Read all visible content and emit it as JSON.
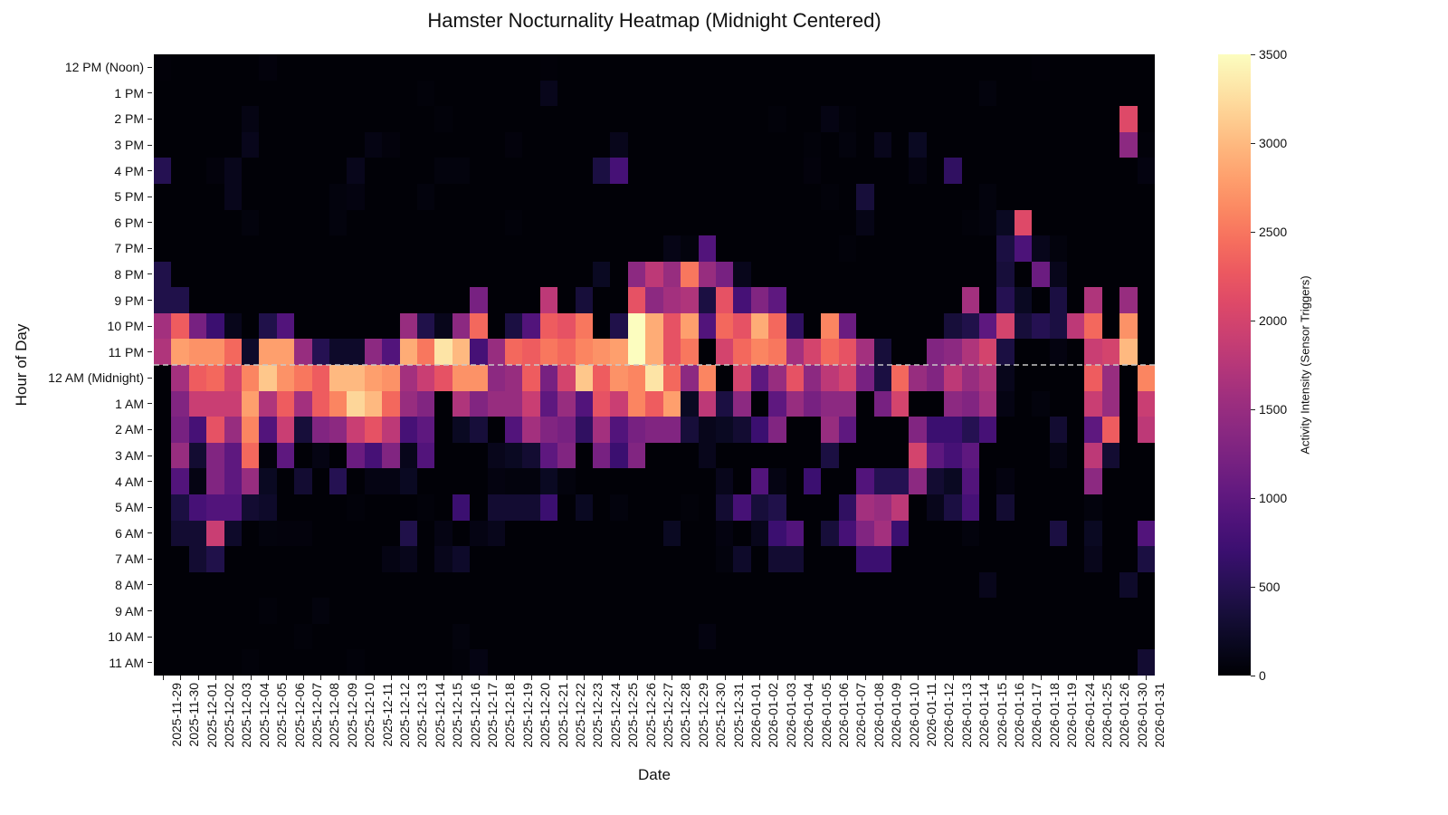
{
  "chart_data": {
    "type": "heatmap",
    "title": "Hamster Nocturnality Heatmap (Midnight Centered)",
    "xlabel": "Date",
    "ylabel": "Hour of Day",
    "colorbar_label": "Activity Intensity (Sensor Triggers)",
    "colormap": "magma",
    "vmin": 0,
    "vmax": 3500,
    "colorbar_ticks": [
      0,
      500,
      1000,
      1500,
      2000,
      2500,
      3000,
      3500
    ],
    "midnight_line": {
      "between_rows": [
        "11 PM",
        "12 AM (Midnight)"
      ],
      "style": "dashed",
      "color": "#c8c8c8"
    },
    "y_labels": [
      "12 PM (Noon)",
      "1 PM",
      "2 PM",
      "3 PM",
      "4 PM",
      "5 PM",
      "6 PM",
      "7 PM",
      "8 PM",
      "9 PM",
      "10 PM",
      "11 PM",
      "12 AM (Midnight)",
      "1 AM",
      "2 AM",
      "3 AM",
      "4 AM",
      "5 AM",
      "6 AM",
      "7 AM",
      "8 AM",
      "9 AM",
      "10 AM",
      "11 AM"
    ],
    "x_labels": [
      "2025-11-29",
      "2025-11-30",
      "2025-12-01",
      "2025-12-02",
      "2025-12-03",
      "2025-12-04",
      "2025-12-05",
      "2025-12-06",
      "2025-12-07",
      "2025-12-08",
      "2025-12-09",
      "2025-12-10",
      "2025-12-11",
      "2025-12-12",
      "2025-12-13",
      "2025-12-14",
      "2025-12-15",
      "2025-12-16",
      "2025-12-17",
      "2025-12-18",
      "2025-12-19",
      "2025-12-20",
      "2025-12-21",
      "2025-12-22",
      "2025-12-23",
      "2025-12-24",
      "2025-12-25",
      "2025-12-26",
      "2025-12-27",
      "2025-12-28",
      "2025-12-29",
      "2025-12-30",
      "2025-12-31",
      "2026-01-01",
      "2026-01-02",
      "2026-01-03",
      "2026-01-04",
      "2026-01-05",
      "2026-01-06",
      "2026-01-07",
      "2026-01-08",
      "2026-01-09",
      "2026-01-10",
      "2026-01-11",
      "2026-01-12",
      "2026-01-13",
      "2026-01-14",
      "2026-01-15",
      "2026-01-16",
      "2026-01-17",
      "2026-01-18",
      "2026-01-19",
      "2026-01-24",
      "2026-01-25",
      "2026-01-26",
      "2026-01-30",
      "2026-01-31"
    ],
    "values": [
      [
        30,
        20,
        20,
        20,
        20,
        20,
        50,
        20,
        20,
        20,
        20,
        20,
        20,
        20,
        20,
        20,
        20,
        20,
        20,
        20,
        20,
        20,
        30,
        20,
        20,
        20,
        20,
        20,
        20,
        20,
        20,
        20,
        20,
        20,
        20,
        20,
        20,
        20,
        20,
        20,
        20,
        20,
        20,
        20,
        20,
        20,
        20,
        20,
        20,
        20,
        30,
        20,
        20,
        20,
        20,
        20,
        20
      ],
      [
        20,
        20,
        20,
        20,
        20,
        20,
        20,
        20,
        20,
        20,
        20,
        20,
        20,
        20,
        20,
        40,
        20,
        20,
        20,
        20,
        20,
        20,
        150,
        20,
        20,
        20,
        20,
        20,
        20,
        20,
        20,
        20,
        20,
        20,
        20,
        20,
        20,
        20,
        20,
        20,
        20,
        20,
        20,
        20,
        20,
        20,
        20,
        60,
        20,
        20,
        20,
        20,
        20,
        20,
        20,
        20,
        20
      ],
      [
        20,
        20,
        20,
        20,
        20,
        100,
        20,
        20,
        20,
        20,
        20,
        20,
        20,
        20,
        20,
        20,
        40,
        20,
        20,
        20,
        20,
        20,
        20,
        20,
        20,
        20,
        20,
        20,
        20,
        20,
        20,
        20,
        20,
        20,
        20,
        40,
        20,
        20,
        100,
        40,
        20,
        20,
        20,
        20,
        20,
        20,
        20,
        20,
        20,
        20,
        20,
        20,
        20,
        20,
        20,
        2100,
        20
      ],
      [
        20,
        20,
        20,
        20,
        20,
        150,
        20,
        20,
        20,
        20,
        20,
        20,
        100,
        50,
        20,
        20,
        20,
        20,
        20,
        20,
        50,
        20,
        20,
        20,
        20,
        20,
        150,
        20,
        20,
        20,
        20,
        20,
        20,
        20,
        20,
        20,
        20,
        40,
        20,
        60,
        20,
        150,
        20,
        200,
        20,
        20,
        20,
        20,
        20,
        20,
        20,
        20,
        20,
        20,
        20,
        1400,
        40
      ],
      [
        500,
        20,
        20,
        50,
        150,
        20,
        20,
        20,
        20,
        20,
        20,
        150,
        20,
        20,
        20,
        20,
        60,
        60,
        20,
        20,
        20,
        20,
        20,
        20,
        20,
        400,
        800,
        20,
        20,
        20,
        20,
        20,
        20,
        20,
        20,
        20,
        20,
        50,
        20,
        20,
        20,
        20,
        20,
        80,
        20,
        600,
        20,
        20,
        20,
        20,
        20,
        20,
        20,
        20,
        20,
        20,
        80
      ],
      [
        20,
        20,
        20,
        20,
        150,
        20,
        20,
        20,
        20,
        20,
        60,
        80,
        20,
        20,
        20,
        60,
        20,
        20,
        20,
        20,
        20,
        20,
        20,
        20,
        20,
        20,
        20,
        20,
        20,
        20,
        20,
        20,
        20,
        20,
        20,
        20,
        20,
        20,
        40,
        20,
        350,
        20,
        20,
        20,
        20,
        20,
        20,
        60,
        20,
        20,
        20,
        20,
        20,
        20,
        20,
        20,
        20
      ],
      [
        20,
        20,
        20,
        20,
        20,
        60,
        20,
        20,
        20,
        20,
        60,
        20,
        20,
        20,
        20,
        20,
        20,
        20,
        20,
        20,
        40,
        20,
        20,
        20,
        20,
        20,
        20,
        20,
        20,
        20,
        20,
        20,
        20,
        20,
        20,
        20,
        20,
        20,
        20,
        20,
        120,
        20,
        20,
        20,
        20,
        20,
        40,
        60,
        200,
        2100,
        20,
        20,
        20,
        20,
        20,
        20,
        20
      ],
      [
        20,
        20,
        20,
        20,
        20,
        20,
        20,
        20,
        20,
        20,
        20,
        20,
        20,
        20,
        20,
        20,
        20,
        20,
        20,
        20,
        20,
        20,
        20,
        20,
        20,
        20,
        20,
        20,
        20,
        120,
        60,
        900,
        20,
        20,
        20,
        20,
        20,
        20,
        20,
        40,
        20,
        20,
        20,
        20,
        20,
        20,
        20,
        20,
        400,
        850,
        150,
        60,
        20,
        20,
        20,
        20,
        20
      ],
      [
        450,
        20,
        20,
        20,
        20,
        20,
        20,
        20,
        20,
        20,
        20,
        20,
        20,
        20,
        20,
        20,
        20,
        20,
        20,
        20,
        20,
        20,
        20,
        20,
        20,
        200,
        20,
        1400,
        1800,
        1500,
        2500,
        1500,
        1200,
        150,
        20,
        20,
        20,
        20,
        20,
        20,
        20,
        20,
        20,
        20,
        20,
        20,
        20,
        20,
        350,
        20,
        1100,
        150,
        20,
        20,
        20,
        20,
        20
      ],
      [
        450,
        450,
        20,
        20,
        20,
        20,
        20,
        20,
        20,
        20,
        20,
        20,
        20,
        20,
        20,
        20,
        20,
        20,
        1200,
        20,
        20,
        20,
        1800,
        20,
        350,
        20,
        20,
        2200,
        1400,
        1600,
        1700,
        400,
        2200,
        800,
        1300,
        1000,
        20,
        20,
        20,
        20,
        20,
        20,
        20,
        20,
        20,
        20,
        1600,
        20,
        500,
        200,
        20,
        400,
        20,
        1700,
        20,
        1500,
        20
      ],
      [
        1600,
        2300,
        1200,
        700,
        150,
        20,
        450,
        900,
        20,
        20,
        20,
        20,
        20,
        20,
        1500,
        450,
        150,
        1400,
        2400,
        20,
        400,
        900,
        2300,
        2200,
        2500,
        20,
        450,
        3500,
        2900,
        2200,
        2800,
        900,
        2400,
        2200,
        2900,
        2400,
        600,
        20,
        2600,
        1100,
        20,
        20,
        20,
        20,
        20,
        350,
        450,
        1000,
        2000,
        350,
        500,
        400,
        1800,
        2400,
        20,
        2700,
        20
      ],
      [
        1700,
        2800,
        2700,
        2700,
        2400,
        250,
        2800,
        2800,
        1500,
        500,
        250,
        250,
        1400,
        900,
        2900,
        2500,
        3300,
        3000,
        800,
        1500,
        2400,
        2300,
        2500,
        2400,
        2600,
        2700,
        2800,
        3500,
        2900,
        2200,
        2500,
        20,
        2000,
        2400,
        2600,
        2500,
        1600,
        2000,
        2400,
        2200,
        1600,
        350,
        20,
        20,
        1300,
        1400,
        1700,
        2000,
        400,
        20,
        20,
        80,
        20,
        1900,
        2000,
        3000,
        20
      ],
      [
        20,
        1600,
        2300,
        2400,
        2000,
        2600,
        3100,
        2700,
        2500,
        2300,
        3000,
        3000,
        2800,
        2700,
        1600,
        1900,
        2200,
        2700,
        2700,
        1400,
        1500,
        2300,
        1200,
        2000,
        3100,
        2300,
        2700,
        2600,
        3300,
        2400,
        1400,
        2600,
        20,
        2000,
        1000,
        1500,
        2200,
        1400,
        1800,
        2000,
        1200,
        400,
        2400,
        1500,
        1300,
        1800,
        1500,
        1700,
        150,
        20,
        20,
        20,
        20,
        2300,
        1500,
        20,
        2600
      ],
      [
        20,
        1300,
        1900,
        1900,
        1900,
        2800,
        1700,
        2300,
        1600,
        2300,
        2600,
        3200,
        3000,
        2400,
        1500,
        1300,
        20,
        1700,
        1300,
        1500,
        1500,
        1900,
        1000,
        1500,
        900,
        2200,
        1900,
        2600,
        2300,
        2800,
        200,
        1800,
        400,
        1400,
        20,
        1000,
        1500,
        1200,
        1400,
        1400,
        20,
        1200,
        2000,
        20,
        20,
        1400,
        1300,
        1600,
        100,
        20,
        60,
        20,
        20,
        1900,
        1500,
        20,
        1900
      ],
      [
        20,
        1200,
        800,
        2200,
        1500,
        2600,
        900,
        1900,
        350,
        1300,
        1400,
        1900,
        2200,
        1800,
        800,
        1000,
        20,
        200,
        350,
        20,
        900,
        1600,
        1300,
        1200,
        600,
        1600,
        900,
        1200,
        1300,
        1300,
        350,
        150,
        200,
        300,
        700,
        1300,
        20,
        20,
        1500,
        1000,
        20,
        20,
        20,
        1300,
        700,
        700,
        500,
        800,
        20,
        20,
        20,
        300,
        20,
        1000,
        2300,
        20,
        1800
      ],
      [
        20,
        1500,
        300,
        1300,
        1000,
        2400,
        50,
        1000,
        20,
        100,
        20,
        1100,
        800,
        1300,
        150,
        900,
        20,
        20,
        20,
        150,
        200,
        300,
        1000,
        1300,
        20,
        1200,
        700,
        1300,
        20,
        20,
        20,
        150,
        20,
        20,
        20,
        20,
        20,
        20,
        400,
        20,
        20,
        20,
        20,
        2000,
        1000,
        800,
        1000,
        20,
        20,
        20,
        20,
        100,
        20,
        1800,
        300,
        20,
        20
      ],
      [
        20,
        900,
        100,
        1300,
        1000,
        1500,
        200,
        20,
        300,
        20,
        500,
        20,
        100,
        100,
        200,
        20,
        20,
        20,
        20,
        80,
        60,
        60,
        200,
        60,
        20,
        20,
        20,
        20,
        20,
        20,
        20,
        20,
        150,
        20,
        900,
        100,
        20,
        700,
        20,
        20,
        900,
        500,
        500,
        1400,
        300,
        200,
        900,
        20,
        80,
        20,
        20,
        20,
        20,
        1400,
        20,
        20,
        20
      ],
      [
        20,
        400,
        800,
        900,
        900,
        300,
        250,
        20,
        20,
        20,
        20,
        40,
        20,
        20,
        20,
        40,
        20,
        700,
        20,
        300,
        300,
        300,
        700,
        20,
        200,
        20,
        60,
        20,
        20,
        20,
        40,
        20,
        300,
        800,
        350,
        450,
        20,
        20,
        20,
        600,
        1600,
        1500,
        1800,
        20,
        150,
        400,
        800,
        20,
        300,
        20,
        20,
        20,
        20,
        60,
        20,
        20,
        20
      ],
      [
        20,
        300,
        300,
        1900,
        250,
        20,
        60,
        50,
        50,
        20,
        20,
        20,
        20,
        20,
        450,
        20,
        100,
        20,
        100,
        150,
        20,
        20,
        20,
        20,
        20,
        20,
        20,
        20,
        20,
        200,
        20,
        20,
        80,
        20,
        150,
        700,
        900,
        20,
        350,
        800,
        1300,
        1600,
        700,
        20,
        20,
        20,
        60,
        20,
        20,
        20,
        20,
        400,
        20,
        200,
        20,
        20,
        900
      ],
      [
        20,
        20,
        300,
        450,
        20,
        20,
        20,
        20,
        20,
        20,
        20,
        20,
        20,
        100,
        150,
        20,
        150,
        250,
        20,
        20,
        20,
        20,
        20,
        20,
        20,
        20,
        20,
        20,
        20,
        20,
        20,
        20,
        60,
        250,
        20,
        300,
        300,
        20,
        20,
        20,
        700,
        700,
        20,
        20,
        20,
        20,
        20,
        20,
        20,
        20,
        20,
        20,
        20,
        150,
        20,
        20,
        400
      ],
      [
        20,
        20,
        20,
        20,
        20,
        20,
        20,
        20,
        20,
        20,
        20,
        20,
        20,
        20,
        20,
        20,
        20,
        20,
        20,
        20,
        20,
        20,
        20,
        20,
        20,
        20,
        20,
        20,
        20,
        20,
        20,
        20,
        20,
        20,
        20,
        20,
        20,
        20,
        20,
        20,
        20,
        20,
        20,
        20,
        20,
        20,
        20,
        150,
        20,
        20,
        20,
        20,
        20,
        20,
        20,
        250,
        20
      ],
      [
        20,
        20,
        20,
        20,
        20,
        20,
        40,
        20,
        20,
        60,
        20,
        20,
        20,
        20,
        20,
        20,
        20,
        20,
        20,
        20,
        20,
        20,
        20,
        20,
        20,
        20,
        20,
        20,
        20,
        20,
        20,
        20,
        20,
        20,
        20,
        20,
        20,
        20,
        20,
        20,
        20,
        20,
        20,
        20,
        20,
        20,
        20,
        20,
        20,
        20,
        20,
        20,
        20,
        20,
        20,
        20,
        20
      ],
      [
        20,
        20,
        20,
        20,
        20,
        20,
        20,
        20,
        40,
        20,
        20,
        20,
        20,
        20,
        20,
        20,
        20,
        60,
        20,
        20,
        20,
        20,
        20,
        20,
        20,
        20,
        20,
        20,
        20,
        20,
        20,
        80,
        20,
        20,
        20,
        20,
        20,
        20,
        20,
        20,
        20,
        20,
        20,
        20,
        20,
        20,
        20,
        20,
        20,
        20,
        20,
        20,
        20,
        20,
        20,
        20,
        20
      ],
      [
        20,
        20,
        20,
        20,
        20,
        40,
        20,
        20,
        20,
        20,
        20,
        40,
        20,
        20,
        20,
        20,
        20,
        40,
        100,
        20,
        20,
        20,
        20,
        20,
        20,
        20,
        20,
        20,
        20,
        20,
        20,
        20,
        20,
        20,
        20,
        20,
        20,
        20,
        20,
        20,
        20,
        20,
        20,
        20,
        20,
        20,
        20,
        20,
        20,
        20,
        20,
        20,
        20,
        20,
        20,
        20,
        300
      ]
    ]
  }
}
